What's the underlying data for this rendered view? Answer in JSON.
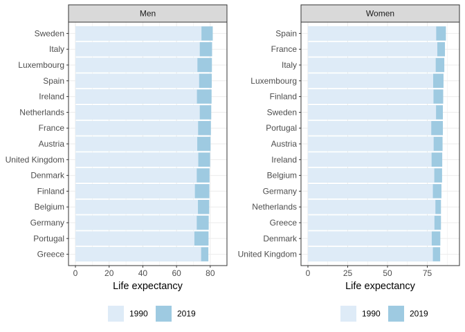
{
  "chart_data": [
    {
      "type": "bar",
      "orientation": "horizontal",
      "panel_title": "Men",
      "xlabel": "Life expectancy",
      "xlim": [
        0,
        85
      ],
      "xticks": [
        0,
        20,
        40,
        60,
        80
      ],
      "categories": [
        "Sweden",
        "Italy",
        "Luxembourg",
        "Spain",
        "Ireland",
        "Netherlands",
        "France",
        "Austria",
        "United Kingdom",
        "Denmark",
        "Finland",
        "Belgium",
        "Germany",
        "Portugal",
        "Greece"
      ],
      "series": [
        {
          "name": "1990",
          "values": [
            74.8,
            73.8,
            72.4,
            73.4,
            72.1,
            73.8,
            72.8,
            72.3,
            72.9,
            72.0,
            70.9,
            72.7,
            72.0,
            70.6,
            74.6
          ]
        },
        {
          "name": "2019",
          "values": [
            81.5,
            81.1,
            81.0,
            80.9,
            80.8,
            80.6,
            80.4,
            80.2,
            79.9,
            79.6,
            79.5,
            79.4,
            79.1,
            79.0,
            78.9
          ]
        }
      ],
      "colors": {
        "1990": "#deebf7",
        "2019": "#9ecae1"
      },
      "legend_position": "bottom",
      "grid": true
    },
    {
      "type": "bar",
      "orientation": "horizontal",
      "panel_title": "Women",
      "xlabel": "Life expectancy",
      "xlim": [
        0,
        90
      ],
      "xticks": [
        0,
        25,
        50,
        75
      ],
      "categories": [
        "Spain",
        "France",
        "Italy",
        "Luxembourg",
        "Finland",
        "Sweden",
        "Portugal",
        "Austria",
        "Ireland",
        "Belgium",
        "Germany",
        "Netherlands",
        "Greece",
        "Denmark",
        "United Kingdom"
      ],
      "series": [
        {
          "name": "1990",
          "values": [
            80.6,
            81.3,
            80.3,
            78.7,
            78.9,
            80.5,
            77.5,
            79.0,
            77.7,
            79.4,
            78.5,
            80.1,
            79.5,
            77.8,
            78.5
          ]
        },
        {
          "name": "2019",
          "values": [
            86.7,
            86.1,
            85.7,
            85.2,
            85.0,
            84.8,
            84.8,
            84.6,
            84.4,
            84.3,
            83.9,
            83.6,
            83.6,
            83.2,
            83.1
          ]
        }
      ],
      "colors": {
        "1990": "#deebf7",
        "2019": "#9ecae1"
      },
      "legend_position": "bottom",
      "grid": true
    }
  ]
}
